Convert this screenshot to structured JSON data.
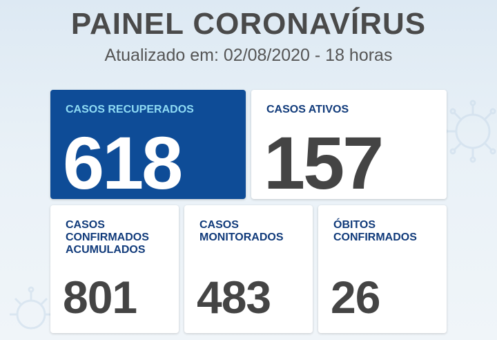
{
  "header": {
    "title": "PAINEL CORONAVÍRUS",
    "subtitle": "Atualizado em: 02/08/2020 - 18 horas"
  },
  "cards": {
    "recuperados": {
      "label": "CASOS RECUPERADOS",
      "value": "618"
    },
    "ativos": {
      "label": "CASOS ATIVOS",
      "value": "157"
    },
    "confirmados": {
      "label_lines": [
        "CASOS",
        "CONFIRMADOS",
        "ACUMULADOS"
      ],
      "value": "801"
    },
    "monitorados": {
      "label_lines": [
        "CASOS",
        "MONITORADOS"
      ],
      "value": "483"
    },
    "obitos": {
      "label_lines": [
        "ÓBITOS",
        "CONFIRMADOS"
      ],
      "value": "26"
    }
  },
  "colors": {
    "primary_card": "#0e4c97",
    "primary_label": "#8fdcf5",
    "card_label": "#103a7a",
    "value_text": "#444444",
    "background": "#e4eef6"
  },
  "decoration": {
    "icon": "virus-icon"
  }
}
